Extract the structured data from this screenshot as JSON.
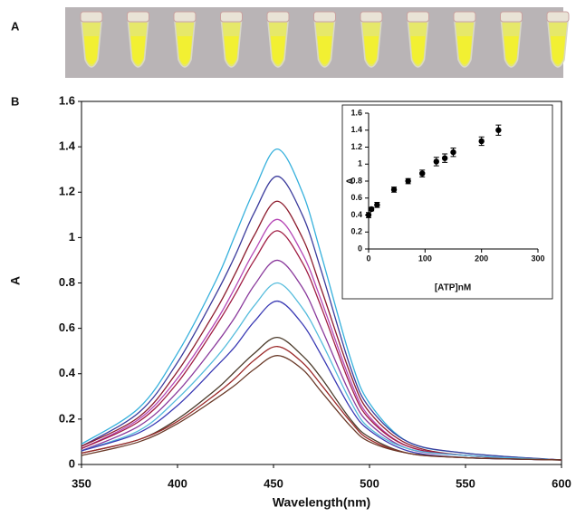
{
  "panel_labels": [
    "A",
    "B"
  ],
  "chart_data": [
    {
      "type": "line",
      "xlabel": "Wavelength(nm)",
      "ylabel": "A",
      "x": [
        350,
        380,
        400,
        420,
        430,
        440,
        452,
        465,
        475,
        490,
        500,
        520,
        550,
        600
      ],
      "xlim": [
        350,
        600
      ],
      "xticks": [
        350,
        400,
        450,
        500,
        550,
        600
      ],
      "ylim": [
        0,
        1.6
      ],
      "yticks": [
        0,
        0.2,
        0.4,
        0.6,
        0.8,
        1,
        1.2,
        1.4,
        1.6
      ],
      "series": [
        {
          "color": "#35b0dc",
          "values": [
            0.09,
            0.25,
            0.49,
            0.81,
            1.01,
            1.21,
            1.39,
            1.2,
            0.92,
            0.47,
            0.27,
            0.1,
            0.05,
            0.02
          ]
        },
        {
          "color": "#3b3b9c",
          "values": [
            0.08,
            0.23,
            0.45,
            0.75,
            0.92,
            1.11,
            1.27,
            1.1,
            0.85,
            0.43,
            0.25,
            0.1,
            0.05,
            0.02
          ]
        },
        {
          "color": "#8c1b2c",
          "values": [
            0.08,
            0.21,
            0.41,
            0.68,
            0.84,
            1.01,
            1.16,
            1.0,
            0.77,
            0.4,
            0.23,
            0.09,
            0.04,
            0.02
          ]
        },
        {
          "color": "#b546b5",
          "values": [
            0.07,
            0.2,
            0.38,
            0.63,
            0.78,
            0.94,
            1.08,
            0.93,
            0.72,
            0.37,
            0.21,
            0.08,
            0.04,
            0.02
          ]
        },
        {
          "color": "#a01d44",
          "values": [
            0.07,
            0.19,
            0.36,
            0.61,
            0.75,
            0.9,
            1.03,
            0.89,
            0.69,
            0.35,
            0.2,
            0.08,
            0.04,
            0.02
          ]
        },
        {
          "color": "#8a3a9c",
          "values": [
            0.06,
            0.17,
            0.32,
            0.53,
            0.65,
            0.79,
            0.9,
            0.78,
            0.6,
            0.31,
            0.18,
            0.07,
            0.04,
            0.02
          ]
        },
        {
          "color": "#55bcdc",
          "values": [
            0.06,
            0.15,
            0.29,
            0.47,
            0.58,
            0.7,
            0.8,
            0.69,
            0.54,
            0.28,
            0.16,
            0.07,
            0.04,
            0.02
          ]
        },
        {
          "color": "#3a3ab4",
          "values": [
            0.06,
            0.14,
            0.26,
            0.43,
            0.52,
            0.63,
            0.72,
            0.62,
            0.48,
            0.25,
            0.15,
            0.06,
            0.03,
            0.02
          ]
        },
        {
          "color": "#4a3a2a",
          "values": [
            0.05,
            0.11,
            0.2,
            0.33,
            0.41,
            0.49,
            0.56,
            0.48,
            0.38,
            0.2,
            0.12,
            0.05,
            0.03,
            0.02
          ]
        },
        {
          "color": "#9c2a2a",
          "values": [
            0.05,
            0.11,
            0.19,
            0.31,
            0.38,
            0.46,
            0.52,
            0.45,
            0.35,
            0.19,
            0.11,
            0.05,
            0.03,
            0.02
          ]
        },
        {
          "color": "#6b3b2a",
          "values": [
            0.04,
            0.1,
            0.18,
            0.29,
            0.35,
            0.42,
            0.48,
            0.42,
            0.32,
            0.17,
            0.1,
            0.05,
            0.03,
            0.02
          ]
        }
      ]
    },
    {
      "type": "scatter",
      "xlabel": "[ATP]nM",
      "ylabel": "A",
      "color": "#000000",
      "x": [
        0,
        5,
        15,
        45,
        70,
        95,
        120,
        135,
        150,
        200,
        230
      ],
      "values": [
        0.4,
        0.47,
        0.52,
        0.7,
        0.8,
        0.89,
        1.03,
        1.07,
        1.14,
        1.27,
        1.4
      ],
      "errors": [
        0.03,
        0.02,
        0.03,
        0.03,
        0.03,
        0.04,
        0.05,
        0.05,
        0.05,
        0.05,
        0.06
      ],
      "xlim": [
        0,
        300
      ],
      "xticks": [
        0,
        100,
        200,
        300
      ],
      "ylim": [
        0,
        1.6
      ],
      "yticks": [
        0,
        0.2,
        0.4,
        0.6,
        0.8,
        1,
        1.2,
        1.4,
        1.6
      ]
    }
  ]
}
